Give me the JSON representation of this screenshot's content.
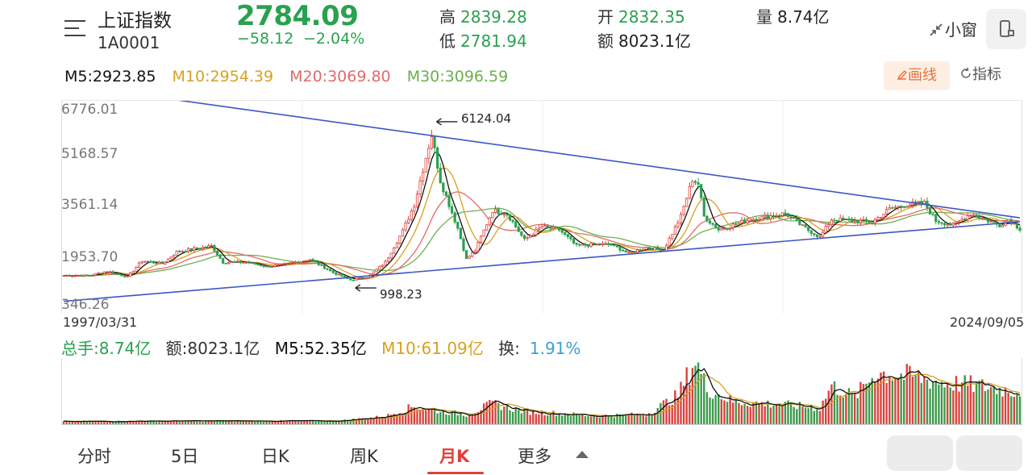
{
  "header": {
    "name": "上证指数",
    "code": "1A0001",
    "price": "2784.09",
    "change": "−58.12",
    "change_pct": "−2.04%",
    "high_label": "高",
    "high_value": "2839.28",
    "low_label": "低",
    "low_value": "2781.94",
    "open_label": "开",
    "open_value": "2832.35",
    "amount_label": "额",
    "amount_value": "8023.1亿",
    "volume_label": "量",
    "volume_value": "8.74亿",
    "mini_window": "小窗",
    "colors": {
      "down": "#2aa14f",
      "up": "#e0403a"
    }
  },
  "ma": {
    "m5": "M5:2923.85",
    "m10": "M10:2954.39",
    "m20": "M20:3069.80",
    "m30": "M30:3096.59",
    "colors": {
      "m5": "#111111",
      "m10": "#d9a020",
      "m20": "#e26a6a",
      "m30": "#6cb04d"
    }
  },
  "tools": {
    "draw": "画线",
    "indicator": "指标"
  },
  "chart_data": [
    {
      "type": "candlestick",
      "period": "monthly",
      "x_start": "1997/03/31",
      "x_end": "2024/09/05",
      "y_ticks": [
        "6776.01",
        "5168.57",
        "3561.14",
        "1953.70",
        "346.26"
      ],
      "ylim": [
        346.26,
        6776.01
      ],
      "annotations": [
        {
          "label": "6124.04",
          "date": "2007-10",
          "value": 6124.04
        },
        {
          "label": "998.23",
          "date": "2005-06",
          "value": 998.23
        }
      ],
      "trendlines": [
        {
          "name": "upper",
          "points": [
            [
              "2000-01",
              7200
            ],
            [
              "2024-09",
              3150
            ]
          ]
        },
        {
          "name": "lower",
          "points": [
            [
              "1997-03",
              330
            ],
            [
              "2024-09",
              3020
            ]
          ]
        }
      ],
      "close_path": [
        [
          "1997-03",
          1200
        ],
        [
          "1997-12",
          1200
        ],
        [
          "1998-06",
          1350
        ],
        [
          "1999-01",
          1150
        ],
        [
          "1999-06",
          1700
        ],
        [
          "2000-01",
          1600
        ],
        [
          "2000-06",
          2000
        ],
        [
          "2001-06",
          2200
        ],
        [
          "2001-10",
          1650
        ],
        [
          "2002-06",
          1650
        ],
        [
          "2003-01",
          1500
        ],
        [
          "2003-06",
          1550
        ],
        [
          "2004-04",
          1750
        ],
        [
          "2004-12",
          1300
        ],
        [
          "2005-06",
          1050
        ],
        [
          "2005-12",
          1150
        ],
        [
          "2006-06",
          1650
        ],
        [
          "2006-12",
          2700
        ],
        [
          "2007-04",
          3600
        ],
        [
          "2007-08",
          5200
        ],
        [
          "2007-10",
          5950
        ],
        [
          "2008-01",
          4400
        ],
        [
          "2008-04",
          3600
        ],
        [
          "2008-07",
          2800
        ],
        [
          "2008-10",
          1750
        ],
        [
          "2009-01",
          2050
        ],
        [
          "2009-07",
          3400
        ],
        [
          "2009-12",
          3300
        ],
        [
          "2010-06",
          2400
        ],
        [
          "2010-12",
          2850
        ],
        [
          "2011-06",
          2750
        ],
        [
          "2011-12",
          2200
        ],
        [
          "2012-06",
          2250
        ],
        [
          "2012-12",
          2250
        ],
        [
          "2013-06",
          1950
        ],
        [
          "2013-12",
          2150
        ],
        [
          "2014-06",
          2050
        ],
        [
          "2014-12",
          3200
        ],
        [
          "2015-04",
          4450
        ],
        [
          "2015-06",
          4300
        ],
        [
          "2015-08",
          3200
        ],
        [
          "2016-01",
          2750
        ],
        [
          "2016-12",
          3100
        ],
        [
          "2017-12",
          3300
        ],
        [
          "2018-06",
          2850
        ],
        [
          "2018-12",
          2500
        ],
        [
          "2019-04",
          3100
        ],
        [
          "2019-12",
          3050
        ],
        [
          "2020-06",
          3000
        ],
        [
          "2020-12",
          3450
        ],
        [
          "2021-06",
          3600
        ],
        [
          "2021-12",
          3650
        ],
        [
          "2022-04",
          3050
        ],
        [
          "2022-10",
          2900
        ],
        [
          "2023-04",
          3300
        ],
        [
          "2023-12",
          2970
        ],
        [
          "2024-02",
          2900
        ],
        [
          "2024-05",
          3100
        ],
        [
          "2024-09",
          2784.09
        ]
      ]
    },
    {
      "type": "bar",
      "name": "volume",
      "x_start": "1997/03/31",
      "x_end": "2024/09/05",
      "relative_volume_path": [
        [
          "1997-03",
          0.04
        ],
        [
          "2000-01",
          0.05
        ],
        [
          "2005-01",
          0.05
        ],
        [
          "2006-06",
          0.12
        ],
        [
          "2007-04",
          0.28
        ],
        [
          "2007-10",
          0.22
        ],
        [
          "2008-10",
          0.15
        ],
        [
          "2009-07",
          0.32
        ],
        [
          "2010-06",
          0.2
        ],
        [
          "2012-06",
          0.13
        ],
        [
          "2013-12",
          0.15
        ],
        [
          "2014-11",
          0.45
        ],
        [
          "2015-05",
          1.0
        ],
        [
          "2015-09",
          0.55
        ],
        [
          "2016-06",
          0.35
        ],
        [
          "2017-12",
          0.3
        ],
        [
          "2018-12",
          0.25
        ],
        [
          "2019-04",
          0.6
        ],
        [
          "2019-12",
          0.42
        ],
        [
          "2020-07",
          0.8
        ],
        [
          "2021-06",
          0.75
        ],
        [
          "2022-06",
          0.65
        ],
        [
          "2023-06",
          0.6
        ],
        [
          "2024-09",
          0.5
        ]
      ]
    }
  ],
  "volume_row": {
    "total": "总手:8.74亿",
    "amount": "额:8023.1亿",
    "m5": "M5:52.35亿",
    "m10": "M10:61.09亿",
    "turnover_label": "换:",
    "turnover_value": "1.91%"
  },
  "tabs": [
    "分时",
    "5日",
    "日K",
    "周K",
    "月K",
    "更多"
  ],
  "active_tab": "月K"
}
